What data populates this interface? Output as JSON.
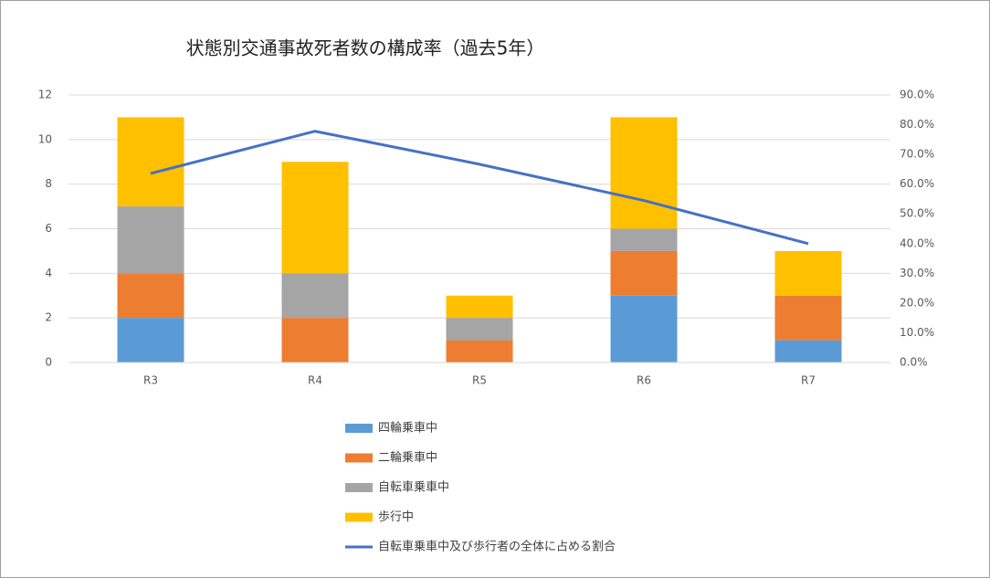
{
  "chart_data": {
    "type": "bar",
    "stacked": true,
    "title": "状態別交通事故死者数の構成率（過去5年）",
    "categories": [
      "R3",
      "R4",
      "R5",
      "R6",
      "R7"
    ],
    "series": [
      {
        "name": "四輪乗車中",
        "color": "#5b9bd5",
        "values": [
          2,
          0,
          0,
          3,
          1
        ]
      },
      {
        "name": "二輪乗車中",
        "color": "#ed7d31",
        "values": [
          2,
          2,
          1,
          2,
          2
        ]
      },
      {
        "name": "自転車乗車中",
        "color": "#a5a5a5",
        "values": [
          3,
          2,
          1,
          1,
          0
        ]
      },
      {
        "name": "歩行中",
        "color": "#ffc000",
        "values": [
          4,
          5,
          1,
          5,
          2
        ]
      },
      {
        "name": "自転車乗車中及び歩行者の全体に占める割合",
        "color": "#4472c4",
        "type": "line",
        "axis": "y2",
        "values": [
          63.6,
          77.8,
          66.7,
          54.5,
          40
        ]
      }
    ],
    "ylim": [
      0,
      12
    ],
    "yticks": [
      0,
      2,
      4,
      6,
      8,
      10,
      12
    ],
    "y2lim": [
      0,
      90
    ],
    "y2ticks": [
      {
        "value": 0,
        "label": "0.0%"
      },
      {
        "value": 10,
        "label": "10.0%"
      },
      {
        "value": 20,
        "label": "20.0%"
      },
      {
        "value": 30,
        "label": "30.0%"
      },
      {
        "value": 40,
        "label": "40.0%"
      },
      {
        "value": 50,
        "label": "50.0%"
      },
      {
        "value": 60,
        "label": "60.0%"
      },
      {
        "value": 70,
        "label": "70.0%"
      },
      {
        "value": 80,
        "label": "80.0%"
      },
      {
        "value": 90,
        "label": "90.0%"
      }
    ],
    "grid": true,
    "legend": "bottom"
  }
}
